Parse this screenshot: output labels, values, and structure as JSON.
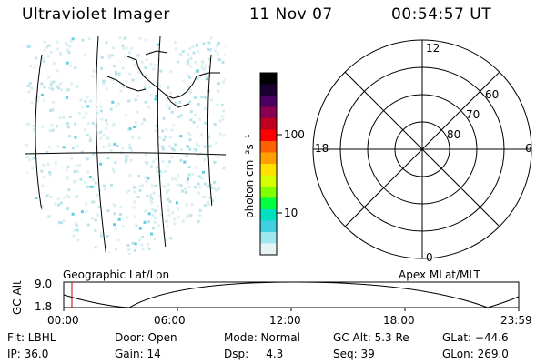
{
  "header": {
    "title": "Ultraviolet Imager",
    "date": "11 Nov 07",
    "time": "00:54:57 UT"
  },
  "colorbar": {
    "unit_label": "photon cm⁻²s⁻¹",
    "ticks": [
      "100",
      "10"
    ],
    "colors": [
      "#000000",
      "#1a0030",
      "#4a0060",
      "#8a0050",
      "#c00020",
      "#ff0000",
      "#ff6000",
      "#ffa000",
      "#ffe000",
      "#d8ff00",
      "#80ff00",
      "#00ff40",
      "#00e0c0",
      "#40d0e0",
      "#a0e8f0",
      "#e6f4f6"
    ]
  },
  "geo_panel": {
    "label": "Geographic Lat/Lon"
  },
  "polar_panel": {
    "label": "Apex MLat/MLT",
    "mlt_labels": {
      "top": "12",
      "right": "6",
      "bottom": "0",
      "left": "18"
    },
    "lat_labels": [
      "60",
      "70",
      "80"
    ]
  },
  "altitude_plot": {
    "ylabel": "GC Alt",
    "yticks": [
      "9.0",
      "1.8"
    ],
    "xticks": [
      "00:00",
      "06:00",
      "12:00",
      "18:00",
      "23:59"
    ],
    "marker_color": "#cc0000"
  },
  "info": {
    "flt": "Flt: LBHL",
    "ip": "IP: 36.0",
    "door": "Door: Open",
    "gain": "Gain: 14",
    "mode": "Mode: Normal",
    "dsp": "Dsp:     4.3",
    "gc_alt": "GC Alt: 5.3 Re",
    "seq": "Seq: 39",
    "glat": "GLat: −44.6",
    "glon": "GLon: 269.0"
  }
}
